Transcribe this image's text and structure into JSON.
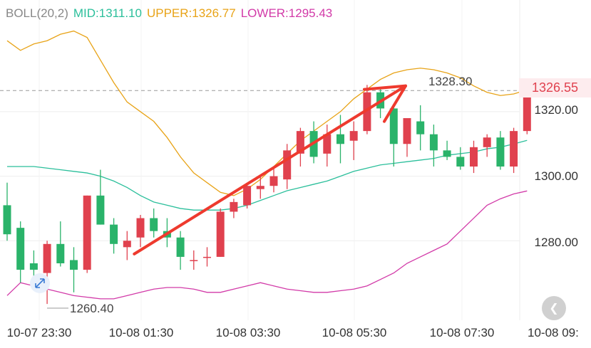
{
  "legend": {
    "boll": "BOLL(20,2)",
    "mid": "MID:1311.10",
    "upper": "UPPER:1326.77",
    "lower": "LOWER:1295.43"
  },
  "colors": {
    "up": "#e0414e",
    "down": "#2ab36a",
    "mid": "#2bbf9b",
    "upper": "#e8a317",
    "lower": "#d23aa8",
    "arrow": "#ee3a2e",
    "grid": "#eeeeee",
    "boll_text": "#888888"
  },
  "price_badge": "1326.55",
  "high_label": "1328.30",
  "low_label": "1260.40",
  "back_icon": "chevron-left-icon",
  "chart_data": {
    "type": "candlestick",
    "y_ticks": [
      "1320.00",
      "1300.00",
      "1280.00"
    ],
    "x_ticks": [
      "10-07 23:30",
      "10-08 01:30",
      "10-08 03:30",
      "10-08 05:30",
      "10-08 07:30",
      "10-08 09:"
    ],
    "ylim": [
      1258,
      1348
    ],
    "current_price": 1326.55,
    "candles": [
      {
        "o": 1291.0,
        "h": 1298.0,
        "l": 1280.0,
        "c": 1282.0
      },
      {
        "o": 1284.0,
        "h": 1286.0,
        "l": 1267.0,
        "c": 1271.0
      },
      {
        "o": 1273.0,
        "h": 1277.0,
        "l": 1265.0,
        "c": 1271.0
      },
      {
        "o": 1270.0,
        "h": 1280.0,
        "l": 1260.4,
        "c": 1279.0
      },
      {
        "o": 1279.0,
        "h": 1286.0,
        "l": 1272.0,
        "c": 1273.0
      },
      {
        "o": 1274.0,
        "h": 1278.0,
        "l": 1264.0,
        "c": 1271.0
      },
      {
        "o": 1271.0,
        "h": 1294.0,
        "l": 1270.0,
        "c": 1294.0
      },
      {
        "o": 1294.0,
        "h": 1302.0,
        "l": 1285.0,
        "c": 1285.0
      },
      {
        "o": 1285.0,
        "h": 1287.0,
        "l": 1276.0,
        "c": 1279.0
      },
      {
        "o": 1278.0,
        "h": 1283.0,
        "l": 1274.0,
        "c": 1280.0
      },
      {
        "o": 1281.0,
        "h": 1288.0,
        "l": 1278.0,
        "c": 1287.0
      },
      {
        "o": 1287.0,
        "h": 1290.0,
        "l": 1281.0,
        "c": 1283.0
      },
      {
        "o": 1283.0,
        "h": 1287.0,
        "l": 1278.0,
        "c": 1281.0
      },
      {
        "o": 1281.0,
        "h": 1283.0,
        "l": 1271.0,
        "c": 1275.0
      },
      {
        "o": 1274.0,
        "h": 1277.0,
        "l": 1271.0,
        "c": 1274.0
      },
      {
        "o": 1275.0,
        "h": 1278.0,
        "l": 1272.0,
        "c": 1275.0
      },
      {
        "o": 1275.0,
        "h": 1290.0,
        "l": 1275.0,
        "c": 1289.0
      },
      {
        "o": 1289.0,
        "h": 1293.0,
        "l": 1287.0,
        "c": 1292.0
      },
      {
        "o": 1291.0,
        "h": 1298.0,
        "l": 1290.0,
        "c": 1297.0
      },
      {
        "o": 1296.0,
        "h": 1300.0,
        "l": 1293.0,
        "c": 1297.0
      },
      {
        "o": 1297.0,
        "h": 1303.0,
        "l": 1295.0,
        "c": 1300.0
      },
      {
        "o": 1299.0,
        "h": 1310.0,
        "l": 1296.0,
        "c": 1308.0
      },
      {
        "o": 1307.0,
        "h": 1315.0,
        "l": 1303.0,
        "c": 1314.0
      },
      {
        "o": 1314.0,
        "h": 1317.0,
        "l": 1304.0,
        "c": 1306.0
      },
      {
        "o": 1307.0,
        "h": 1316.0,
        "l": 1303.0,
        "c": 1313.0
      },
      {
        "o": 1313.0,
        "h": 1319.0,
        "l": 1304.0,
        "c": 1310.0
      },
      {
        "o": 1311.0,
        "h": 1317.0,
        "l": 1305.0,
        "c": 1314.0
      },
      {
        "o": 1314.0,
        "h": 1328.3,
        "l": 1313.0,
        "c": 1326.0
      },
      {
        "o": 1326.0,
        "h": 1327.0,
        "l": 1318.0,
        "c": 1321.0
      },
      {
        "o": 1321.0,
        "h": 1322.0,
        "l": 1303.0,
        "c": 1310.0
      },
      {
        "o": 1310.0,
        "h": 1318.0,
        "l": 1306.0,
        "c": 1318.0
      },
      {
        "o": 1317.0,
        "h": 1322.0,
        "l": 1308.0,
        "c": 1313.0
      },
      {
        "o": 1313.0,
        "h": 1316.0,
        "l": 1303.0,
        "c": 1308.0
      },
      {
        "o": 1308.0,
        "h": 1311.0,
        "l": 1305.0,
        "c": 1306.0
      },
      {
        "o": 1306.0,
        "h": 1309.0,
        "l": 1302.0,
        "c": 1303.0
      },
      {
        "o": 1303.0,
        "h": 1311.0,
        "l": 1301.0,
        "c": 1309.0
      },
      {
        "o": 1309.0,
        "h": 1313.0,
        "l": 1306.0,
        "c": 1312.0
      },
      {
        "o": 1312.0,
        "h": 1314.0,
        "l": 1302.0,
        "c": 1303.0
      },
      {
        "o": 1303.0,
        "h": 1315.0,
        "l": 1301.0,
        "c": 1314.0
      },
      {
        "o": 1314.0,
        "h": 1328.0,
        "l": 1313.0,
        "c": 1326.55
      }
    ],
    "upper": [
      1342,
      1339,
      1341,
      1342,
      1344,
      1345,
      1343,
      1336,
      1329,
      1323,
      1320,
      1317,
      1312,
      1306,
      1301,
      1298,
      1295,
      1294,
      1296,
      1299,
      1303,
      1307,
      1311,
      1314,
      1317,
      1320,
      1324,
      1327,
      1330,
      1332,
      1333,
      1333.5,
      1333,
      1332,
      1330.5,
      1328,
      1326,
      1325,
      1325.5,
      1326.77
    ],
    "mid": [
      1303,
      1303,
      1303,
      1302.5,
      1302,
      1301.5,
      1301,
      1300,
      1298.5,
      1296.5,
      1294,
      1292,
      1291,
      1290,
      1289.5,
      1289.5,
      1289.5,
      1290,
      1291,
      1292.5,
      1294,
      1295.5,
      1296.5,
      1297.5,
      1298.5,
      1300,
      1301.5,
      1302.5,
      1303.5,
      1304,
      1304.5,
      1305,
      1305.5,
      1306.5,
      1307,
      1307.5,
      1308.5,
      1309,
      1310,
      1311.1
    ],
    "lower": [
      1263,
      1267,
      1266,
      1265,
      1264,
      1263,
      1262.5,
      1262,
      1262,
      1263,
      1264,
      1265,
      1265.5,
      1265.5,
      1265,
      1264,
      1264,
      1265,
      1266,
      1267,
      1266,
      1265,
      1264.5,
      1264,
      1264,
      1264.5,
      1265,
      1266,
      1268,
      1270,
      1273,
      1275,
      1277,
      1279,
      1283,
      1287,
      1291,
      1293,
      1294.5,
      1295.43
    ],
    "arrow": {
      "from": [
        9,
        1277
      ],
      "to": [
        30,
        1328
      ]
    }
  }
}
